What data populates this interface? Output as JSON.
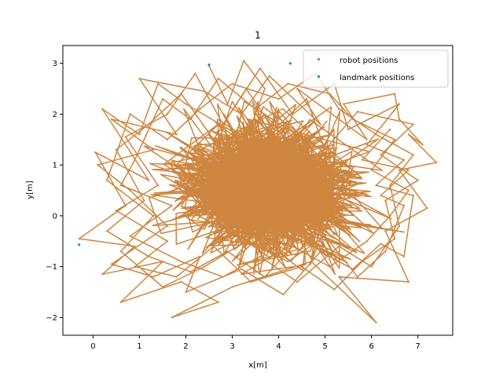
{
  "chart_data": {
    "type": "scatter",
    "title": "1",
    "xlabel": "x[m]",
    "ylabel": "y[m]",
    "xlim": [
      -0.65,
      7.75
    ],
    "ylim": [
      -2.35,
      3.35
    ],
    "xticks": [
      0,
      1,
      2,
      3,
      4,
      5,
      6,
      7
    ],
    "yticks": [
      -2,
      -1,
      0,
      1,
      2,
      3
    ],
    "grid": false,
    "legend_position": "top-right",
    "colors": {
      "robot": "#cd853f",
      "landmark": "#1e9bb0",
      "axes": "#000000"
    },
    "series": [
      {
        "name": "robot positions",
        "kind": "path",
        "color": "#cd853f",
        "points": [
          [
            2.5,
            2.95
          ],
          [
            2.9,
            2.2
          ],
          [
            3.25,
            3.05
          ],
          [
            3.7,
            2.5
          ],
          [
            3.3,
            1.5
          ],
          [
            2.0,
            2.2
          ],
          [
            1.4,
            2.6
          ],
          [
            1.0,
            1.6
          ],
          [
            0.2,
            2.1
          ],
          [
            1.2,
            0.7
          ],
          [
            0.05,
            1.25
          ],
          [
            0.7,
            0.2
          ],
          [
            -0.3,
            -0.45
          ],
          [
            0.9,
            -0.6
          ],
          [
            0.2,
            -1.15
          ],
          [
            1.5,
            -0.9
          ],
          [
            0.6,
            -1.7
          ],
          [
            1.9,
            -1.3
          ],
          [
            2.7,
            -1.7
          ],
          [
            1.7,
            -2.0
          ],
          [
            3.0,
            -1.4
          ],
          [
            4.7,
            -0.9
          ],
          [
            6.1,
            -2.1
          ],
          [
            5.3,
            -1.2
          ],
          [
            6.8,
            -1.3
          ],
          [
            6.3,
            -0.3
          ],
          [
            7.2,
            0.15
          ],
          [
            6.6,
            0.9
          ],
          [
            7.4,
            1.05
          ],
          [
            6.8,
            1.6
          ],
          [
            7.1,
            1.4
          ],
          [
            6.6,
            1.9
          ],
          [
            6.5,
            2.4
          ],
          [
            5.4,
            2.2
          ],
          [
            5.9,
            1.5
          ],
          [
            4.4,
            2.5
          ],
          [
            4.9,
            1.8
          ],
          [
            3.8,
            2.75
          ],
          [
            3.2,
            2.0
          ],
          [
            2.4,
            2.45
          ],
          [
            1.0,
            2.7
          ],
          [
            1.8,
            1.6
          ],
          [
            0.4,
            1.9
          ],
          [
            1.3,
            1.3
          ],
          [
            0.1,
            1.0
          ],
          [
            0.8,
            0.5
          ],
          [
            1.6,
            -0.2
          ],
          [
            0.4,
            -0.95
          ],
          [
            1.3,
            -1.2
          ],
          [
            2.3,
            -0.8
          ],
          [
            2.0,
            -1.5
          ],
          [
            3.2,
            -1.05
          ],
          [
            4.1,
            -1.55
          ],
          [
            4.9,
            -0.7
          ],
          [
            5.6,
            -1.05
          ],
          [
            6.2,
            -0.55
          ],
          [
            6.7,
            -0.8
          ],
          [
            6.9,
            0.4
          ],
          [
            6.1,
            0.6
          ],
          [
            6.7,
            1.1
          ],
          [
            5.9,
            1.4
          ],
          [
            6.6,
            2.2
          ],
          [
            5.5,
            1.7
          ],
          [
            5.2,
            2.6
          ],
          [
            4.3,
            2.0
          ],
          [
            3.6,
            2.9
          ],
          [
            2.8,
            1.8
          ],
          [
            2.2,
            2.8
          ],
          [
            1.6,
            2.0
          ],
          [
            0.7,
            1.55
          ],
          [
            1.4,
            0.6
          ],
          [
            0.5,
            0.1
          ],
          [
            1.6,
            -0.5
          ],
          [
            0.9,
            -1.0
          ],
          [
            1.8,
            -1.2
          ],
          [
            2.6,
            -0.6
          ],
          [
            3.4,
            -1.3
          ],
          [
            4.5,
            -1.0
          ],
          [
            5.2,
            -1.45
          ],
          [
            5.8,
            -0.9
          ],
          [
            6.5,
            -0.45
          ],
          [
            6.3,
            0.3
          ],
          [
            7.0,
            0.7
          ],
          [
            6.2,
            1.2
          ],
          [
            6.9,
            1.8
          ],
          [
            5.7,
            2.05
          ],
          [
            5.0,
            1.3
          ],
          [
            4.6,
            2.3
          ],
          [
            3.9,
            1.7
          ],
          [
            3.3,
            2.5
          ],
          [
            2.6,
            1.5
          ],
          [
            1.9,
            2.4
          ],
          [
            1.2,
            1.8
          ],
          [
            0.5,
            1.3
          ],
          [
            1.1,
            0.3
          ],
          [
            0.3,
            -0.3
          ],
          [
            1.2,
            -0.8
          ],
          [
            2.1,
            -1.1
          ],
          [
            2.9,
            -0.7
          ],
          [
            3.7,
            -1.2
          ],
          [
            4.3,
            -0.6
          ],
          [
            5.1,
            -1.0
          ],
          [
            5.9,
            -0.5
          ],
          [
            6.4,
            0.0
          ],
          [
            6.8,
            0.5
          ],
          [
            6.0,
            0.9
          ],
          [
            6.5,
            1.5
          ],
          [
            5.6,
            1.9
          ],
          [
            5.1,
            2.4
          ],
          [
            4.2,
            2.6
          ],
          [
            3.5,
            2.1
          ],
          [
            2.7,
            2.7
          ],
          [
            2.1,
            1.9
          ],
          [
            1.5,
            2.3
          ],
          [
            0.9,
            1.1
          ],
          [
            0.6,
            0.6
          ],
          [
            1.7,
            0.2
          ],
          [
            0.8,
            -0.4
          ],
          [
            1.9,
            -0.9
          ],
          [
            2.8,
            -1.2
          ],
          [
            3.6,
            -0.8
          ],
          [
            4.4,
            -1.3
          ],
          [
            5.3,
            -0.6
          ],
          [
            6.0,
            -1.0
          ],
          [
            6.6,
            -0.2
          ],
          [
            6.4,
            0.6
          ],
          [
            6.9,
            1.2
          ],
          [
            6.1,
            1.6
          ],
          [
            5.3,
            2.1
          ],
          [
            4.8,
            2.8
          ],
          [
            4.0,
            2.3
          ],
          [
            3.0,
            2.6
          ],
          [
            2.3,
            2.1
          ],
          [
            1.6,
            1.5
          ],
          [
            0.8,
            2.0
          ],
          [
            0.3,
            0.7
          ],
          [
            1.3,
            0.0
          ],
          [
            0.6,
            -0.7
          ],
          [
            1.5,
            -1.4
          ],
          [
            2.4,
            -1.0
          ],
          [
            3.3,
            -0.5
          ],
          [
            4.2,
            -0.9
          ],
          [
            5.0,
            -0.4
          ],
          [
            5.7,
            -1.2
          ],
          [
            6.3,
            -0.7
          ],
          [
            6.7,
            0.2
          ],
          [
            6.2,
            0.4
          ],
          [
            6.8,
            0.9
          ],
          [
            5.8,
            1.1
          ],
          [
            6.4,
            1.7
          ]
        ]
      },
      {
        "name": "landmark positions",
        "kind": "markers",
        "color": "#1e9bb0",
        "points": [
          [
            4.25,
            3.0
          ],
          [
            -0.3,
            -0.57
          ],
          [
            2.5,
            2.97
          ]
        ]
      }
    ]
  }
}
